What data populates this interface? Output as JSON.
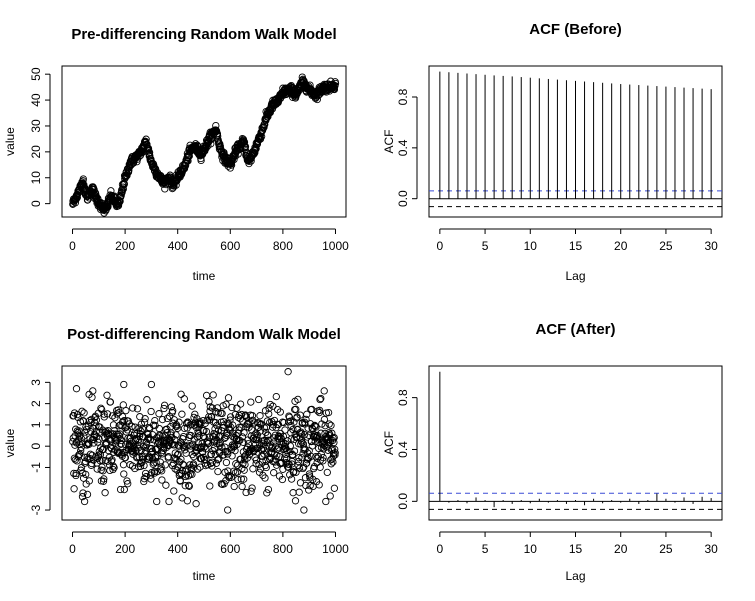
{
  "chart_data": [
    {
      "type": "scatter",
      "title": "Pre-differencing Random Walk Model",
      "xlabel": "time",
      "ylabel": "value",
      "xlim": [
        0,
        1000
      ],
      "ylim": [
        -3,
        51
      ],
      "xticks": [
        0,
        200,
        400,
        600,
        800,
        1000
      ],
      "yticks": [
        0,
        10,
        20,
        30,
        40,
        50
      ],
      "n_points": 1000,
      "x_start": 1,
      "x_step": 1,
      "path_anchors": [
        [
          1,
          0
        ],
        [
          30,
          6
        ],
        [
          40,
          9
        ],
        [
          55,
          2
        ],
        [
          75,
          6
        ],
        [
          90,
          2
        ],
        [
          110,
          -1
        ],
        [
          125,
          -3
        ],
        [
          145,
          3
        ],
        [
          175,
          -1
        ],
        [
          195,
          8
        ],
        [
          220,
          16
        ],
        [
          255,
          19
        ],
        [
          280,
          24
        ],
        [
          300,
          16
        ],
        [
          320,
          12
        ],
        [
          345,
          8
        ],
        [
          365,
          10
        ],
        [
          385,
          7
        ],
        [
          410,
          12
        ],
        [
          425,
          14
        ],
        [
          445,
          20
        ],
        [
          465,
          22
        ],
        [
          490,
          19
        ],
        [
          520,
          25
        ],
        [
          545,
          29
        ],
        [
          560,
          22
        ],
        [
          575,
          18
        ],
        [
          600,
          15
        ],
        [
          620,
          20
        ],
        [
          650,
          24
        ],
        [
          670,
          16
        ],
        [
          690,
          20
        ],
        [
          705,
          24
        ],
        [
          720,
          28
        ],
        [
          740,
          34
        ],
        [
          760,
          38
        ],
        [
          785,
          40
        ],
        [
          800,
          43
        ],
        [
          830,
          44
        ],
        [
          850,
          42
        ],
        [
          875,
          47
        ],
        [
          900,
          44
        ],
        [
          925,
          42
        ],
        [
          955,
          45
        ],
        [
          975,
          45
        ],
        [
          1000,
          46
        ]
      ],
      "noise_sd": 1.4
    },
    {
      "type": "bar",
      "subtype": "acf",
      "title": "ACF (Before)",
      "xlabel": "Lag",
      "ylabel": "ACF",
      "xlim": [
        0,
        30
      ],
      "ylim": [
        -0.1,
        1.0
      ],
      "xticks": [
        0,
        5,
        10,
        15,
        20,
        25,
        30
      ],
      "yticks": [
        0.0,
        0.4,
        0.8
      ],
      "confidence_bounds": [
        0.062,
        -0.062
      ],
      "lags": [
        0,
        1,
        2,
        3,
        4,
        5,
        6,
        7,
        8,
        9,
        10,
        11,
        12,
        13,
        14,
        15,
        16,
        17,
        18,
        19,
        20,
        21,
        22,
        23,
        24,
        25,
        26,
        27,
        28,
        29,
        30
      ],
      "values": [
        1.0,
        0.995,
        0.99,
        0.985,
        0.98,
        0.975,
        0.97,
        0.966,
        0.962,
        0.957,
        0.952,
        0.947,
        0.942,
        0.937,
        0.932,
        0.927,
        0.922,
        0.917,
        0.912,
        0.907,
        0.902,
        0.898,
        0.894,
        0.89,
        0.886,
        0.882,
        0.878,
        0.874,
        0.87,
        0.866,
        0.862
      ]
    },
    {
      "type": "scatter",
      "title": "Post-differencing Random Walk Model",
      "xlabel": "time",
      "ylabel": "value",
      "xlim": [
        0,
        1000
      ],
      "ylim": [
        -3.2,
        3.5
      ],
      "xticks": [
        0,
        200,
        400,
        600,
        800,
        1000
      ],
      "yticks": [
        -3,
        -1,
        0,
        1,
        2,
        3
      ],
      "n_points": 999,
      "x_start": 1,
      "x_step": 1,
      "mean": 0.05,
      "sd": 1.0,
      "highlighted_points": [
        [
          15,
          2.7
        ],
        [
          195,
          2.9
        ],
        [
          300,
          2.9
        ],
        [
          820,
          3.5
        ],
        [
          590,
          -3.0
        ],
        [
          880,
          -3.0
        ],
        [
          470,
          -2.7
        ],
        [
          40,
          -2.2
        ]
      ]
    },
    {
      "type": "bar",
      "subtype": "acf",
      "title": "ACF (After)",
      "xlabel": "Lag",
      "ylabel": "ACF",
      "xlim": [
        0,
        30
      ],
      "ylim": [
        -0.1,
        1.0
      ],
      "xticks": [
        0,
        5,
        10,
        15,
        20,
        25,
        30
      ],
      "yticks": [
        0.0,
        0.4,
        0.8
      ],
      "confidence_bounds": [
        0.062,
        -0.062
      ],
      "lags": [
        0,
        1,
        2,
        3,
        4,
        5,
        6,
        7,
        8,
        9,
        10,
        11,
        12,
        13,
        14,
        15,
        16,
        17,
        18,
        19,
        20,
        21,
        22,
        23,
        24,
        25,
        26,
        27,
        28,
        29,
        30
      ],
      "values": [
        1.0,
        -0.01,
        0.01,
        -0.015,
        0.03,
        0.01,
        -0.045,
        0.01,
        -0.02,
        0.01,
        -0.015,
        0.02,
        -0.01,
        0.01,
        -0.02,
        0.01,
        -0.03,
        0.02,
        -0.015,
        0.01,
        -0.01,
        0.02,
        -0.02,
        0.01,
        0.06,
        0.02,
        -0.01,
        0.03,
        -0.02,
        0.035,
        0.025
      ]
    }
  ]
}
